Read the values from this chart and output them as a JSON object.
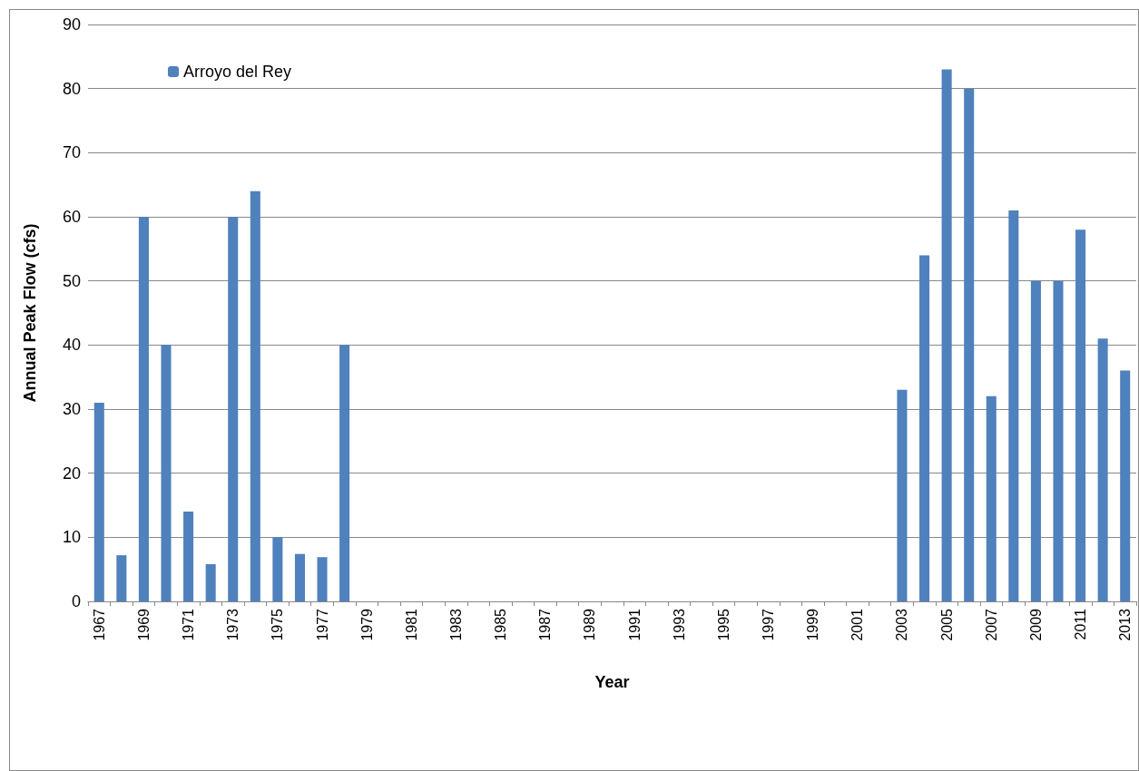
{
  "chart_data": {
    "type": "bar",
    "xlabel": "Year",
    "ylabel": "Annual Peak Flow (cfs)",
    "categories": [
      "1967",
      null,
      "1969",
      null,
      "1971",
      null,
      "1973",
      null,
      "1975",
      null,
      "1977",
      null,
      "1979",
      null,
      "1981",
      null,
      "1983",
      null,
      "1985",
      null,
      "1987",
      null,
      "1989",
      null,
      "1991",
      null,
      "1993",
      null,
      "1995",
      null,
      "1997",
      null,
      "1999",
      null,
      "2001",
      null,
      "2003",
      null,
      "2005",
      null,
      "2007",
      null,
      "2009",
      null,
      "2011",
      null,
      "2013"
    ],
    "series": [
      {
        "name": "Arroyo del Rey",
        "color": "#4f81bd",
        "values": [
          31,
          7.2,
          60,
          40,
          14,
          5.8,
          60,
          64,
          10,
          7.4,
          6.9,
          40,
          null,
          null,
          null,
          null,
          null,
          null,
          null,
          null,
          null,
          null,
          null,
          null,
          null,
          null,
          null,
          null,
          null,
          null,
          null,
          null,
          null,
          null,
          null,
          null,
          33,
          54,
          83,
          80,
          32,
          61,
          50,
          50,
          58,
          41,
          36
        ]
      }
    ],
    "ylim": [
      0,
      90
    ],
    "yticks": [
      0,
      10,
      20,
      30,
      40,
      50,
      60,
      70,
      80,
      90
    ],
    "grid": "y",
    "legend": "top left"
  }
}
